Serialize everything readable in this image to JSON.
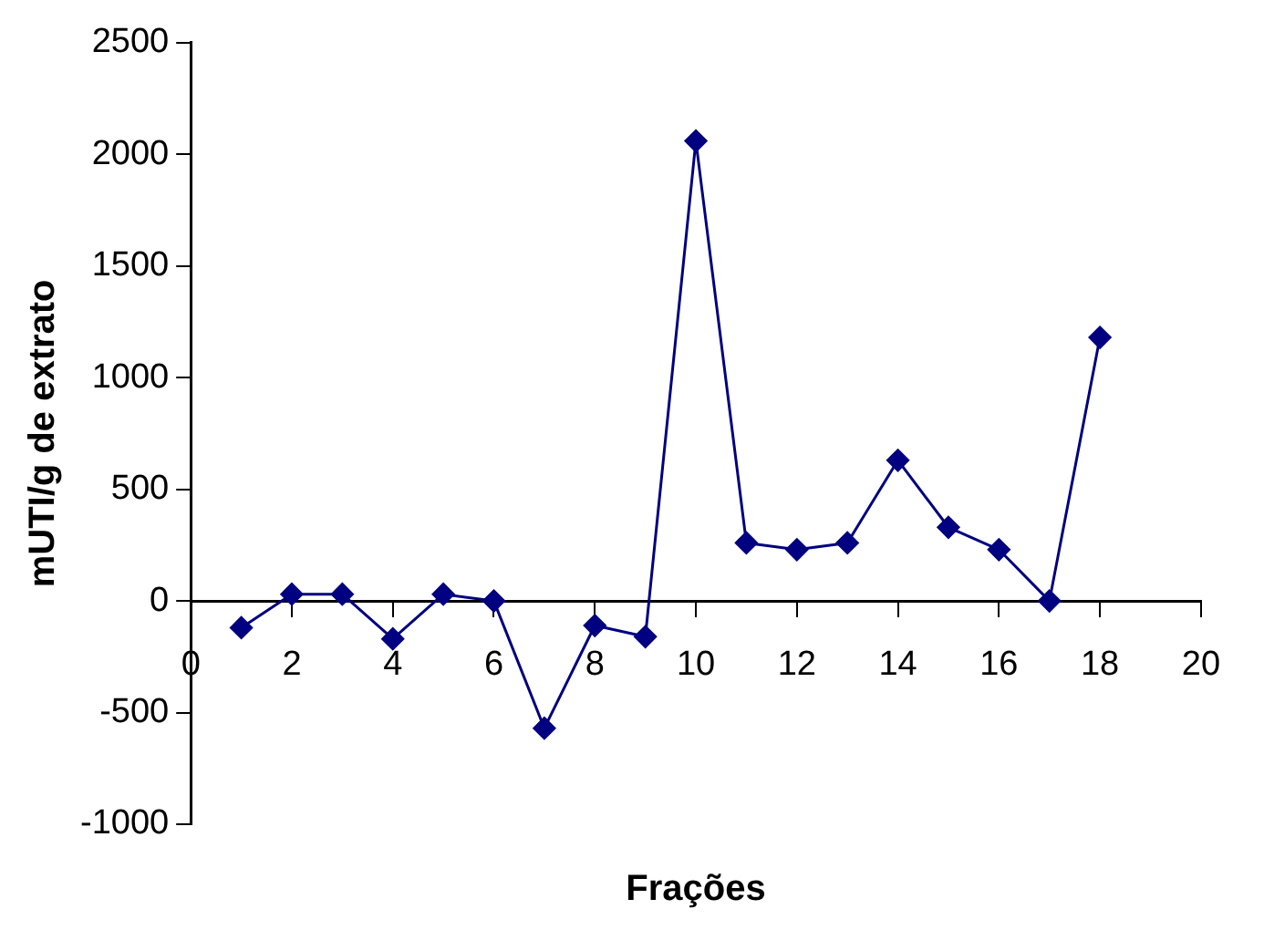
{
  "chart_data": {
    "type": "line",
    "xlabel": "Frações",
    "ylabel": "mUTI/g de extrato",
    "x": [
      1,
      2,
      3,
      4,
      5,
      6,
      7,
      8,
      9,
      10,
      11,
      12,
      13,
      14,
      15,
      16,
      17,
      18
    ],
    "series": [
      {
        "color": "#000080",
        "values": [
          -120,
          30,
          30,
          -170,
          30,
          0,
          -570,
          -110,
          -160,
          2060,
          260,
          230,
          260,
          630,
          330,
          230,
          0,
          1180
        ]
      }
    ],
    "xlim": [
      0,
      20
    ],
    "xticks": [
      0,
      2,
      4,
      6,
      8,
      10,
      12,
      14,
      16,
      18,
      20
    ],
    "ylim": [
      -1000,
      2500
    ],
    "yticks": [
      -1000,
      -500,
      0,
      500,
      1000,
      1500,
      2000,
      2500
    ],
    "grid": false,
    "legend": false,
    "marker": "diamond",
    "line_style": "solid"
  }
}
